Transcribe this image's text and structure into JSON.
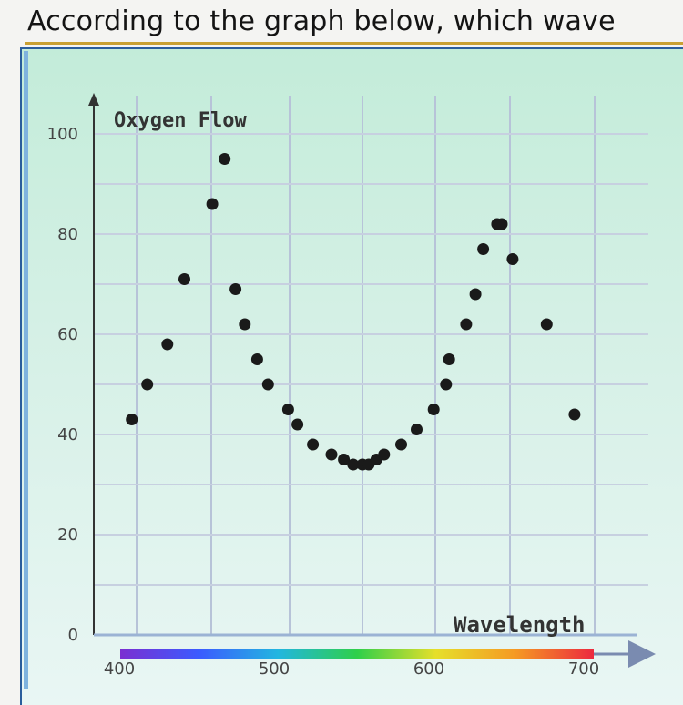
{
  "question": "According to the graph below, which wave",
  "chart_data": {
    "type": "scatter",
    "title": "",
    "xlabel": "Wavelength",
    "ylabel": "Oxygen Flow",
    "xlim": [
      400,
      700
    ],
    "ylim": [
      0,
      100
    ],
    "xticks": [
      "400",
      "500",
      "600",
      "700"
    ],
    "yticks": [
      "0",
      "20",
      "40",
      "60",
      "80",
      "100"
    ],
    "grid": true,
    "point_color": "#1a1a1a",
    "spectrum_colors": [
      "#7b2fd1",
      "#3b5bff",
      "#22b6e0",
      "#2fcf4a",
      "#e6df2a",
      "#f59a23",
      "#ec2a3f"
    ],
    "x": [
      401,
      411,
      424,
      435,
      453,
      461,
      468,
      474,
      482,
      489,
      502,
      508,
      518,
      530,
      538,
      544,
      550,
      554,
      559,
      564,
      575,
      585,
      596,
      604,
      606,
      617,
      623,
      628,
      637,
      640,
      647,
      669,
      687
    ],
    "y": [
      43,
      50,
      58,
      71,
      86,
      95,
      69,
      62,
      55,
      50,
      45,
      42,
      38,
      36,
      35,
      34,
      34,
      34,
      35,
      36,
      38,
      41,
      45,
      50,
      55,
      62,
      68,
      77,
      82,
      82,
      75,
      62,
      44
    ]
  }
}
